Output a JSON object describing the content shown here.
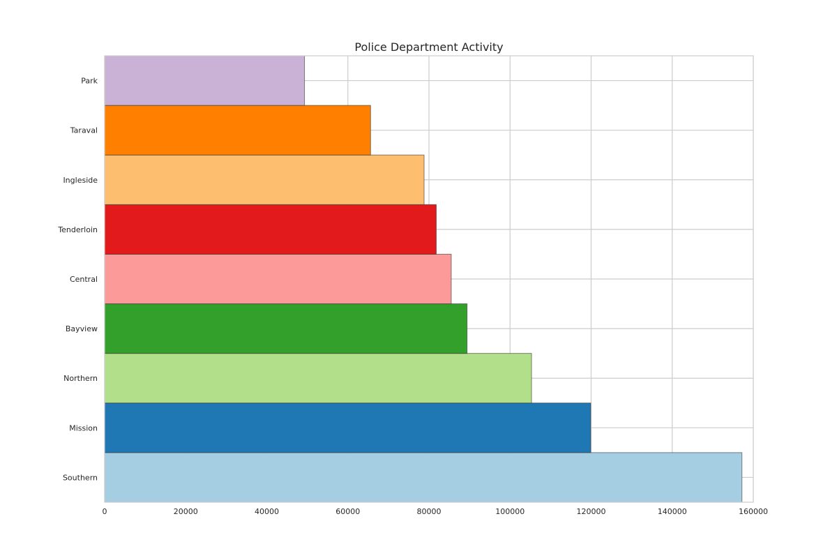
{
  "chart_data": {
    "type": "bar",
    "orientation": "horizontal",
    "title": "Police Department Activity",
    "xlabel": "",
    "ylabel": "",
    "categories": [
      "Southern",
      "Mission",
      "Northern",
      "Bayview",
      "Central",
      "Tenderloin",
      "Ingleside",
      "Taraval",
      "Park"
    ],
    "values": [
      157200,
      119900,
      105300,
      89400,
      85500,
      81800,
      78800,
      65600,
      49300
    ],
    "colors": [
      "#a6cee3",
      "#1f78b4",
      "#b2df8a",
      "#33a02c",
      "#fb9a99",
      "#e31a1c",
      "#fdbf6f",
      "#ff7f00",
      "#cab2d6"
    ],
    "xlim": [
      0,
      160000
    ],
    "xticks": [
      "0",
      "20000",
      "40000",
      "60000",
      "80000",
      "100000",
      "120000",
      "140000",
      "160000"
    ],
    "grid": true,
    "legend": "none"
  }
}
